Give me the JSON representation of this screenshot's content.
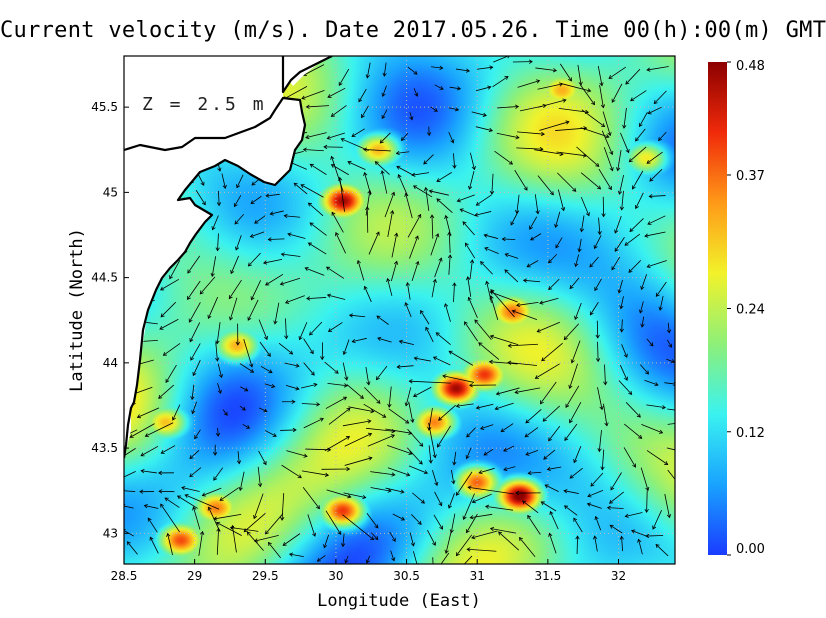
{
  "chart_data": {
    "type": "heatmap",
    "title": "Current velocity (m/s). Date 2017.05.26. Time 00(h):00(m) GMT",
    "annotation": "Z = 2.5 m",
    "xlabel": "Longitude (East)",
    "ylabel": "Latitude (North)",
    "xlim": [
      28.5,
      32.4
    ],
    "ylim": [
      42.82,
      45.8
    ],
    "x_ticks": [
      {
        "value": 28.5,
        "label": "28.5"
      },
      {
        "value": 29,
        "label": "29"
      },
      {
        "value": 29.5,
        "label": "29.5"
      },
      {
        "value": 30,
        "label": "30"
      },
      {
        "value": 30.5,
        "label": "30.5"
      },
      {
        "value": 31,
        "label": "31"
      },
      {
        "value": 31.5,
        "label": "31.5"
      },
      {
        "value": 32,
        "label": "32"
      }
    ],
    "y_ticks": [
      {
        "value": 43,
        "label": "43"
      },
      {
        "value": 43.5,
        "label": "43.5"
      },
      {
        "value": 44,
        "label": "44"
      },
      {
        "value": 44.5,
        "label": "44.5"
      },
      {
        "value": 45,
        "label": "45"
      },
      {
        "value": 45.5,
        "label": "45.5"
      }
    ],
    "grid": true,
    "colorbar": {
      "min": 0.0,
      "max": 0.48,
      "ticks": [
        {
          "value": 0.0,
          "label": "0.00"
        },
        {
          "value": 0.12,
          "label": "0.12"
        },
        {
          "value": 0.24,
          "label": "0.24"
        },
        {
          "value": 0.37,
          "label": "0.37"
        },
        {
          "value": 0.48,
          "label": "0.48"
        }
      ],
      "colors": [
        "#1a3cff",
        "#19a3ff",
        "#3af2f0",
        "#8ef078",
        "#f2f22a",
        "#ff9a18",
        "#f02a0a",
        "#8c0000"
      ],
      "placement": "right"
    },
    "hotspots": [
      {
        "lon": 30.05,
        "lat": 44.95,
        "speed": 0.43
      },
      {
        "lon": 30.85,
        "lat": 43.85,
        "speed": 0.44
      },
      {
        "lon": 31.05,
        "lat": 43.93,
        "speed": 0.37
      },
      {
        "lon": 31.3,
        "lat": 43.22,
        "speed": 0.47
      },
      {
        "lon": 31.0,
        "lat": 43.3,
        "speed": 0.36
      },
      {
        "lon": 30.7,
        "lat": 43.65,
        "speed": 0.33
      },
      {
        "lon": 30.05,
        "lat": 43.13,
        "speed": 0.38
      },
      {
        "lon": 31.25,
        "lat": 44.3,
        "speed": 0.33
      },
      {
        "lon": 28.9,
        "lat": 42.96,
        "speed": 0.36
      },
      {
        "lon": 29.15,
        "lat": 43.15,
        "speed": 0.32
      },
      {
        "lon": 30.3,
        "lat": 45.25,
        "speed": 0.3
      },
      {
        "lon": 31.6,
        "lat": 45.6,
        "speed": 0.28
      },
      {
        "lon": 29.3,
        "lat": 44.1,
        "speed": 0.3
      },
      {
        "lon": 28.8,
        "lat": 43.65,
        "speed": 0.28
      },
      {
        "lon": 32.2,
        "lat": 45.2,
        "speed": 0.26
      }
    ],
    "colors": {
      "land": "#ffffff",
      "coastline": "#000000",
      "arrows": "#000000",
      "grid": "#bbbbbb"
    }
  }
}
